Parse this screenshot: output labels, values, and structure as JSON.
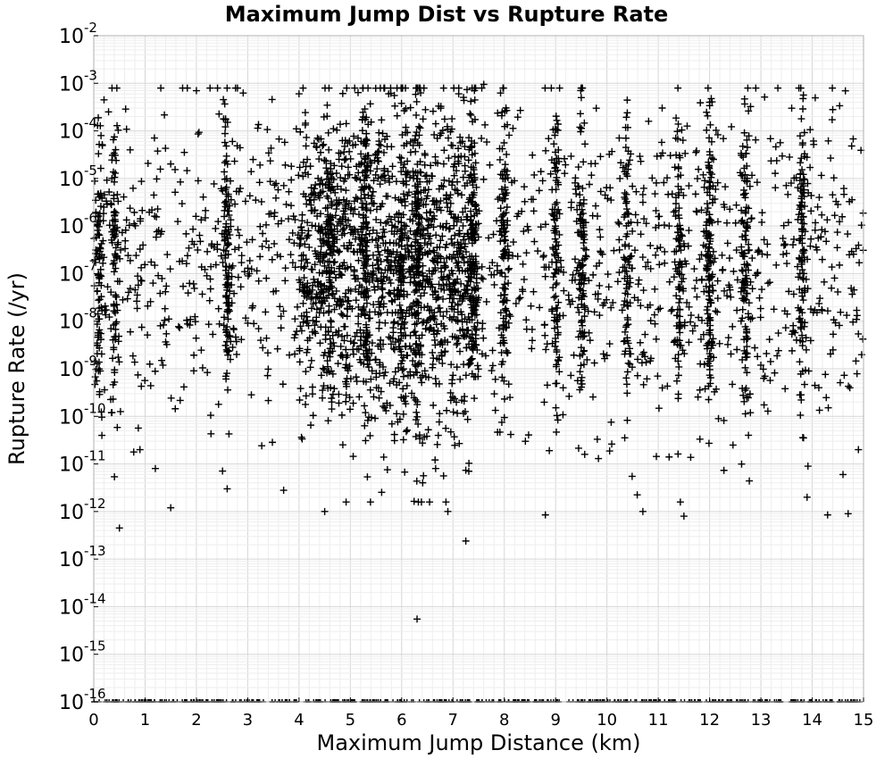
{
  "chart_data": {
    "type": "scatter",
    "title": "Maximum Jump Dist vs Rupture Rate",
    "xlabel": "Maximum Jump Distance (km)",
    "ylabel": "Rupture Rate (/yr)",
    "xlim": [
      0,
      15
    ],
    "ylim": [
      1e-16,
      0.01
    ],
    "yscale": "log",
    "grid": true,
    "marker": "+",
    "marker_color": "#000000",
    "x_ticks": [
      "0",
      "1",
      "2",
      "3",
      "4",
      "5",
      "6",
      "7",
      "8",
      "9",
      "10",
      "11",
      "12",
      "13",
      "14",
      "15"
    ],
    "y_ticks": [
      {
        "base": "10",
        "exp": "-16"
      },
      {
        "base": "10",
        "exp": "-15"
      },
      {
        "base": "10",
        "exp": "-14"
      },
      {
        "base": "10",
        "exp": "-13"
      },
      {
        "base": "10",
        "exp": "-12"
      },
      {
        "base": "10",
        "exp": "-11"
      },
      {
        "base": "10",
        "exp": "-10"
      },
      {
        "base": "10",
        "exp": "-9"
      },
      {
        "base": "10",
        "exp": "-8"
      },
      {
        "base": "10",
        "exp": "-7"
      },
      {
        "base": "10",
        "exp": "-6"
      },
      {
        "base": "10",
        "exp": "-5"
      },
      {
        "base": "10",
        "exp": "-4"
      },
      {
        "base": "10",
        "exp": "-3"
      },
      {
        "base": "10",
        "exp": "-2"
      }
    ],
    "dense_columns_x": [
      0.1,
      0.4,
      2.6,
      4.6,
      5.3,
      6.0,
      6.3,
      7.4,
      8.0,
      9.0,
      9.5,
      10.4,
      11.4,
      12.0,
      12.7,
      13.8
    ],
    "sample_points": [
      [
        0.5,
        4.5e-13
      ],
      [
        7.25,
        2.4e-13
      ],
      [
        6.3,
        5.5e-15
      ],
      [
        7.6,
        0.00095
      ],
      [
        2.0,
        0.0007
      ],
      [
        4.0,
        0.0006
      ],
      [
        0.2,
        0.00045
      ],
      [
        9.5,
        0.0005
      ],
      [
        13.6,
        0.0003
      ],
      [
        12.0,
        0.0004
      ],
      [
        14.4,
        0.00028
      ],
      [
        11.5,
        8e-13
      ],
      [
        14.7,
        9e-13
      ],
      [
        14.3,
        8.5e-13
      ],
      [
        10.7,
        1e-12
      ],
      [
        4.5,
        1e-12
      ],
      [
        6.9,
        1e-12
      ],
      [
        8.8,
        8.5e-13
      ],
      [
        1.5,
        1.2e-12
      ],
      [
        2.6,
        3e-12
      ],
      [
        3.7,
        2.8e-12
      ],
      [
        13.9,
        2e-12
      ],
      [
        0.9,
        2e-11
      ],
      [
        1.2,
        8e-12
      ],
      [
        14.9,
        2e-11
      ],
      [
        14.6,
        6e-12
      ]
    ],
    "floor_value": 1e-16,
    "floor_x_range": [
      0,
      15
    ]
  }
}
